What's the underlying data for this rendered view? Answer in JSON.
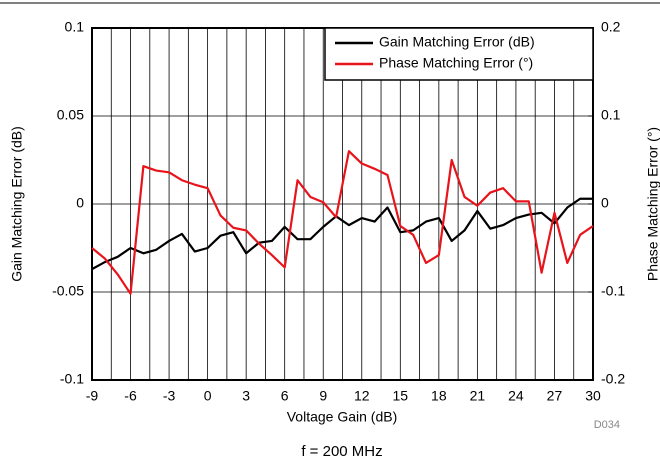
{
  "chart_data": {
    "type": "line",
    "x_label": "Voltage Gain (dB)",
    "y_label": "Gain Matching Error (dB)",
    "y2_label": "Phase Matching Error (°)",
    "note": "f = 200 MHz",
    "code": "D034",
    "x": [
      -9,
      -8,
      -7,
      -6,
      -5,
      -4,
      -3,
      -2,
      -1,
      0,
      1,
      2,
      3,
      4,
      5,
      6,
      7,
      8,
      9,
      10,
      11,
      12,
      13,
      14,
      15,
      16,
      17,
      18,
      19,
      20,
      21,
      22,
      23,
      24,
      25,
      26,
      27,
      28,
      29,
      30
    ],
    "series": [
      {
        "name": "Gain Matching Error (dB)",
        "color": "#000000",
        "axis": "y",
        "values": [
          -0.037,
          -0.033,
          -0.03,
          -0.025,
          -0.028,
          -0.026,
          -0.021,
          -0.017,
          -0.027,
          -0.025,
          -0.018,
          -0.016,
          -0.028,
          -0.022,
          -0.021,
          -0.013,
          -0.02,
          -0.02,
          -0.013,
          -0.007,
          -0.012,
          -0.008,
          -0.01,
          -0.002,
          -0.016,
          -0.015,
          -0.01,
          -0.008,
          -0.021,
          -0.015,
          -0.004,
          -0.014,
          -0.012,
          -0.008,
          -0.006,
          -0.005,
          -0.011,
          -0.002,
          0.003,
          0.003
        ]
      },
      {
        "name": "Phase Matching Error (°)",
        "color": "#e8141b",
        "axis": "y2",
        "values": [
          -0.05,
          -0.062,
          -0.08,
          -0.102,
          0.043,
          0.038,
          0.036,
          0.027,
          0.022,
          0.018,
          -0.013,
          -0.027,
          -0.03,
          -0.045,
          -0.058,
          -0.072,
          0.027,
          0.008,
          0.002,
          -0.015,
          0.06,
          0.046,
          0.04,
          0.033,
          -0.025,
          -0.035,
          -0.067,
          -0.058,
          0.05,
          0.008,
          -0.002,
          0.013,
          0.018,
          0.003,
          0.003,
          -0.078,
          -0.01,
          -0.067,
          -0.035,
          -0.025
        ]
      }
    ],
    "xlim": [
      -9,
      30
    ],
    "xticks": [
      -9,
      -6,
      -3,
      0,
      3,
      6,
      9,
      12,
      15,
      18,
      21,
      24,
      27,
      30
    ],
    "ylim": [
      -0.1,
      0.1
    ],
    "yticks": [
      -0.1,
      -0.05,
      0,
      0.05,
      0.1
    ],
    "y2lim": [
      -0.2,
      0.2
    ],
    "y2ticks": [
      -0.2,
      -0.1,
      0,
      0.1,
      0.2
    ],
    "grid": true,
    "minor_xgrid": true,
    "legend": "upper right"
  }
}
